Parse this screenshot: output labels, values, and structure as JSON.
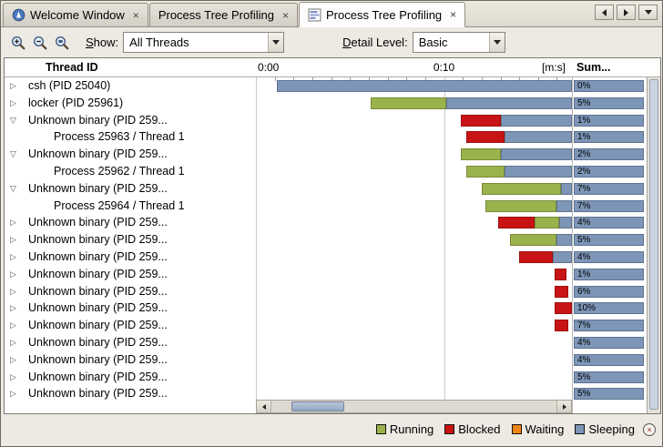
{
  "tabs": [
    {
      "label": "Welcome Window",
      "close": "×",
      "active": false
    },
    {
      "label": "Process Tree Profiling",
      "close": "×",
      "active": false
    },
    {
      "label": "Process Tree Profiling",
      "close": "×",
      "active": true
    }
  ],
  "toolbar": {
    "show_label_mnemonic": "S",
    "show_label_rest": "how:",
    "show_value": "All Threads",
    "detail_label_mnemonic": "D",
    "detail_label_rest": "etail Level:",
    "detail_value": "Basic"
  },
  "table": {
    "header": {
      "thread_col": "Thread ID",
      "unit": "[m:s]",
      "sum_col": "Sum..."
    },
    "timeline": {
      "start_s": 0,
      "end_s": 16.8,
      "major_ticks": [
        {
          "s": 0,
          "label": "0:00"
        },
        {
          "s": 10,
          "label": "0:10"
        }
      ],
      "minor_tick_s": 1
    },
    "rows": [
      {
        "label": "csh (PID 25040)",
        "expander": "collapsed",
        "sum": "0%",
        "bars": [
          {
            "state": "sleeping",
            "s": 1.1,
            "e": 16.8
          }
        ]
      },
      {
        "label": "locker (PID 25961)",
        "expander": "collapsed",
        "sum": "5%",
        "bars": [
          {
            "state": "running",
            "s": 6.1,
            "e": 10.1
          },
          {
            "state": "sleeping",
            "s": 10.1,
            "e": 16.8
          }
        ]
      },
      {
        "label": "Unknown binary (PID 259...",
        "expander": "expanded",
        "sum": "1%",
        "bars": [
          {
            "state": "blocked",
            "s": 10.9,
            "e": 13.0
          },
          {
            "state": "sleeping",
            "s": 13.0,
            "e": 16.8
          }
        ]
      },
      {
        "label": "Process 25963 / Thread 1",
        "child": true,
        "sum": "1%",
        "bars": [
          {
            "state": "blocked",
            "s": 11.2,
            "e": 13.2
          },
          {
            "state": "sleeping",
            "s": 13.2,
            "e": 16.8
          }
        ]
      },
      {
        "label": "Unknown binary (PID 259...",
        "expander": "expanded",
        "sum": "2%",
        "bars": [
          {
            "state": "running",
            "s": 10.9,
            "e": 13.0
          },
          {
            "state": "sleeping",
            "s": 13.0,
            "e": 16.8
          }
        ]
      },
      {
        "label": "Process 25962 / Thread 1",
        "child": true,
        "sum": "2%",
        "bars": [
          {
            "state": "running",
            "s": 11.2,
            "e": 13.2
          },
          {
            "state": "sleeping",
            "s": 13.2,
            "e": 16.8
          }
        ]
      },
      {
        "label": "Unknown binary (PID 259...",
        "expander": "expanded",
        "sum": "7%",
        "bars": [
          {
            "state": "running",
            "s": 12.0,
            "e": 16.2
          },
          {
            "state": "sleeping",
            "s": 16.2,
            "e": 16.8
          }
        ]
      },
      {
        "label": "Process 25964 / Thread 1",
        "child": true,
        "sum": "7%",
        "bars": [
          {
            "state": "running",
            "s": 12.2,
            "e": 16.0
          },
          {
            "state": "sleeping",
            "s": 16.0,
            "e": 16.8
          }
        ]
      },
      {
        "label": "Unknown binary (PID 259...",
        "expander": "collapsed",
        "sum": "4%",
        "bars": [
          {
            "state": "blocked",
            "s": 12.9,
            "e": 14.8
          },
          {
            "state": "running",
            "s": 14.8,
            "e": 16.1
          },
          {
            "state": "sleeping",
            "s": 16.1,
            "e": 16.8
          }
        ]
      },
      {
        "label": "Unknown binary (PID 259...",
        "expander": "collapsed",
        "sum": "5%",
        "bars": [
          {
            "state": "running",
            "s": 13.5,
            "e": 16.0
          },
          {
            "state": "sleeping",
            "s": 16.0,
            "e": 16.8
          }
        ]
      },
      {
        "label": "Unknown binary (PID 259...",
        "expander": "collapsed",
        "sum": "4%",
        "bars": [
          {
            "state": "blocked",
            "s": 14.0,
            "e": 15.8
          },
          {
            "state": "sleeping",
            "s": 15.8,
            "e": 16.8
          }
        ]
      },
      {
        "label": "Unknown binary (PID 259...",
        "expander": "collapsed",
        "sum": "1%",
        "bars": [
          {
            "state": "blocked",
            "s": 15.9,
            "e": 16.5
          }
        ]
      },
      {
        "label": "Unknown binary (PID 259...",
        "expander": "collapsed",
        "sum": "6%",
        "bars": [
          {
            "state": "blocked",
            "s": 15.9,
            "e": 16.6
          }
        ]
      },
      {
        "label": "Unknown binary (PID 259...",
        "expander": "collapsed",
        "sum": "10%",
        "bars": [
          {
            "state": "blocked",
            "s": 15.9,
            "e": 16.8
          }
        ]
      },
      {
        "label": "Unknown binary (PID 259...",
        "expander": "collapsed",
        "sum": "7%",
        "bars": [
          {
            "state": "blocked",
            "s": 15.9,
            "e": 16.6
          }
        ]
      },
      {
        "label": "Unknown binary (PID 259...",
        "expander": "collapsed",
        "sum": "4%",
        "bars": []
      },
      {
        "label": "Unknown binary (PID 259...",
        "expander": "collapsed",
        "sum": "4%",
        "bars": []
      },
      {
        "label": "Unknown binary (PID 259...",
        "expander": "collapsed",
        "sum": "5%",
        "bars": []
      },
      {
        "label": "Unknown binary (PID 259...",
        "expander": "collapsed",
        "sum": "5%",
        "bars": []
      }
    ]
  },
  "legend": {
    "items": [
      {
        "label": "Running",
        "state": "running"
      },
      {
        "label": "Blocked",
        "state": "blocked"
      },
      {
        "label": "Waiting",
        "state": "waiting"
      },
      {
        "label": "Sleeping",
        "state": "sleeping"
      }
    ],
    "close": "×"
  },
  "ui": {
    "tab_close": "×",
    "expander_collapsed": "▷",
    "expander_expanded": "▽"
  },
  "colors": {
    "running": "#9ab24c",
    "blocked": "#c81414",
    "waiting": "#f08418",
    "sleeping": "#7d95b7",
    "sum_bar": "#7d95b7",
    "grid": "#c9c9c9"
  }
}
